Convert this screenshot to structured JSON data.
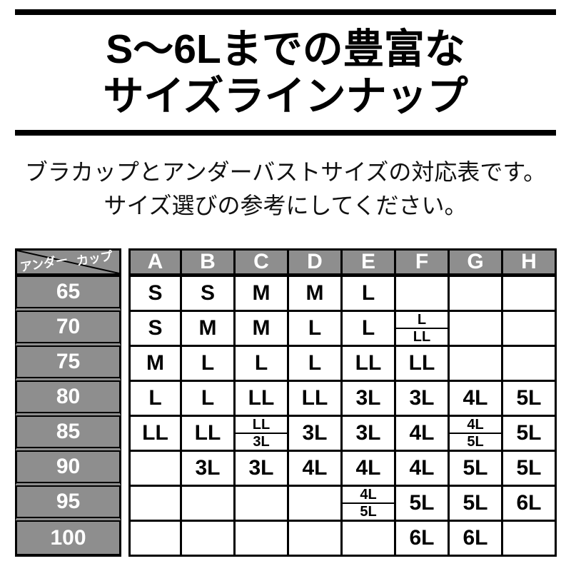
{
  "title": {
    "line1": "S〜6Lまでの豊富な",
    "line2": "サイズラインナップ"
  },
  "subtitle": {
    "line1": "ブラカップとアンダーバストサイズの対応表です。",
    "line2": "サイズ選びの参考にしてください。"
  },
  "table": {
    "corner": {
      "top_label": "カップ",
      "bottom_label": "アンダー"
    },
    "cup_columns": [
      "A",
      "B",
      "C",
      "D",
      "E",
      "F",
      "G",
      "H"
    ],
    "rows": [
      {
        "under": "65",
        "cells": [
          "S",
          "S",
          "M",
          "M",
          "L",
          "",
          "",
          ""
        ]
      },
      {
        "under": "70",
        "cells": [
          "S",
          "M",
          "M",
          "L",
          "L",
          {
            "top": "L",
            "bottom": "LL"
          },
          "",
          ""
        ]
      },
      {
        "under": "75",
        "cells": [
          "M",
          "L",
          "L",
          "L",
          "LL",
          "LL",
          "",
          ""
        ]
      },
      {
        "under": "80",
        "cells": [
          "L",
          "L",
          "LL",
          "LL",
          "3L",
          "3L",
          "4L",
          "5L"
        ]
      },
      {
        "under": "85",
        "cells": [
          "LL",
          "LL",
          {
            "top": "LL",
            "bottom": "3L"
          },
          "3L",
          "3L",
          "4L",
          {
            "top": "4L",
            "bottom": "5L"
          },
          "5L"
        ]
      },
      {
        "under": "90",
        "cells": [
          "",
          "3L",
          "3L",
          "4L",
          "4L",
          "4L",
          "5L",
          "5L"
        ]
      },
      {
        "under": "95",
        "cells": [
          "",
          "",
          "",
          "",
          {
            "top": "4L",
            "bottom": "5L"
          },
          "5L",
          "5L",
          "6L"
        ]
      },
      {
        "under": "100",
        "cells": [
          "",
          "",
          "",
          "",
          "",
          "6L",
          "6L",
          ""
        ]
      }
    ]
  },
  "colors": {
    "header_gray": "#8e8e8e",
    "border_black": "#000000",
    "background": "#ffffff"
  }
}
